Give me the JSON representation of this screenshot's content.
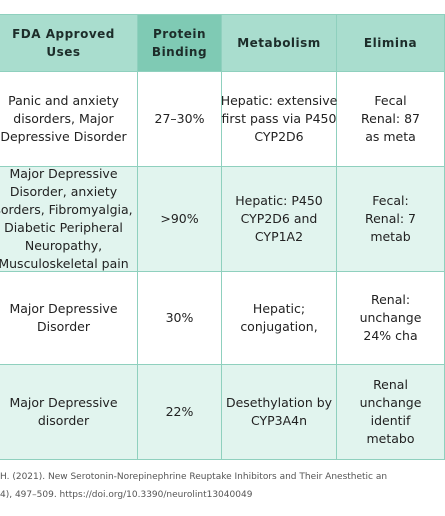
{
  "table": {
    "header": [
      [
        "FDA Approved",
        "Uses"
      ],
      [
        "Protein",
        "Binding"
      ],
      [
        "Metabolism"
      ],
      [
        "Elimina"
      ]
    ],
    "rows": [
      [
        [
          "Panic and anxiety",
          "disorders, Major",
          "Depressive Disorder"
        ],
        [
          "27–30%"
        ],
        [
          "Hepatic: extensive",
          "first pass via P450",
          "CYP2D6"
        ],
        [
          "Fecal",
          "Renal: 87",
          "as meta"
        ]
      ],
      [
        [
          "Major Depressive",
          "Disorder, anxiety",
          "sorders, Fibromyalgia,",
          "Diabetic Peripheral",
          "Neuropathy,",
          "Musculoskeletal pain"
        ],
        [
          ">90%"
        ],
        [
          "Hepatic: P450",
          "CYP2D6 and",
          "CYP1A2"
        ],
        [
          "Fecal:",
          "Renal: 7",
          "metab"
        ]
      ],
      [
        [
          "Major Depressive",
          "Disorder"
        ],
        [
          "30%"
        ],
        [
          "Hepatic;",
          "conjugation,"
        ],
        [
          "Renal:",
          "unchange",
          "24% cha"
        ]
      ],
      [
        [
          "Major Depressive",
          "disorder"
        ],
        [
          "22%"
        ],
        [
          "Desethylation by",
          "CYP3A4n"
        ],
        [
          "Renal",
          "unchange",
          "identif",
          "metabo"
        ]
      ]
    ]
  },
  "footer": [
    "H. (2021). New Serotonin-Norepinephrine Reuptake Inhibitors and Their Anesthetic an",
    "4), 497–509. https://doi.org/10.3390/neurolint13040049"
  ]
}
